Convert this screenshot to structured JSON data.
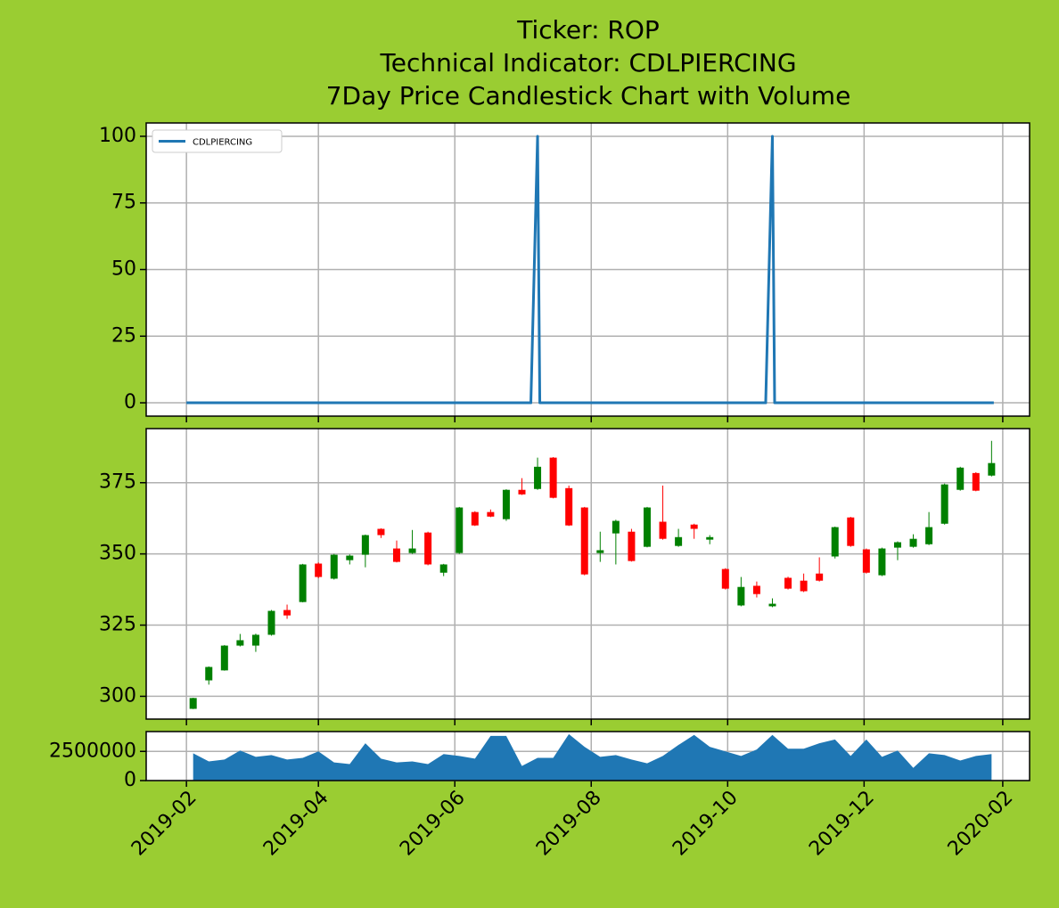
{
  "chart_data": [
    {
      "type": "line",
      "title": [
        "Ticker: ROP",
        "Technical Indicator: CDLPIERCING",
        "7Day Price Candlestick Chart with Volume"
      ],
      "x": [
        "2019-02-01",
        "2019-07-05",
        "2019-07-08",
        "2019-07-09",
        "2019-10-18",
        "2019-10-21",
        "2019-10-22",
        "2020-01-28"
      ],
      "series": [
        {
          "name": "CDLPIERCING",
          "color": "#1f77b4",
          "values": [
            0,
            0,
            100,
            0,
            0,
            100,
            0,
            0
          ]
        }
      ],
      "legend": "upper left",
      "ylim": [
        -5,
        105
      ],
      "yticks": [
        0,
        25,
        50,
        75,
        100
      ],
      "grid": true
    },
    {
      "type": "candlestick",
      "x": [
        "2019-02-04",
        "2019-02-11",
        "2019-02-18",
        "2019-02-25",
        "2019-03-04",
        "2019-03-11",
        "2019-03-18",
        "2019-03-25",
        "2019-04-01",
        "2019-04-08",
        "2019-04-15",
        "2019-04-22",
        "2019-04-29",
        "2019-05-06",
        "2019-05-13",
        "2019-05-20",
        "2019-05-27",
        "2019-06-03",
        "2019-06-10",
        "2019-06-17",
        "2019-06-24",
        "2019-07-01",
        "2019-07-08",
        "2019-07-15",
        "2019-07-22",
        "2019-07-29",
        "2019-08-05",
        "2019-08-12",
        "2019-08-19",
        "2019-08-26",
        "2019-09-02",
        "2019-09-09",
        "2019-09-16",
        "2019-09-23",
        "2019-09-30",
        "2019-10-07",
        "2019-10-14",
        "2019-10-21",
        "2019-10-28",
        "2019-11-04",
        "2019-11-11",
        "2019-11-18",
        "2019-11-25",
        "2019-12-02",
        "2019-12-09",
        "2019-12-16",
        "2019-12-23",
        "2019-12-30",
        "2020-01-06",
        "2020-01-13",
        "2020-01-20",
        "2020-01-27"
      ],
      "open": [
        295.6,
        305.6,
        309.1,
        317.8,
        317.8,
        321.6,
        330.3,
        333.1,
        346.6,
        341.3,
        347.8,
        349.7,
        358.8,
        351.9,
        350.3,
        357.5,
        343.4,
        350.3,
        364.7,
        364.7,
        362.2,
        372.5,
        372.8,
        383.8,
        373.1,
        366.3,
        350.3,
        357.2,
        357.8,
        352.5,
        361.3,
        352.8,
        360.3,
        355.0,
        344.7,
        331.9,
        338.8,
        331.6,
        341.6,
        340.6,
        343.1,
        349.1,
        362.8,
        351.6,
        342.5,
        352.2,
        352.5,
        353.4,
        360.6,
        372.5,
        378.4,
        377.5
      ],
      "high": [
        299.5,
        310.5,
        318.0,
        321.9,
        322.0,
        330.3,
        332.2,
        346.5,
        347.0,
        350.0,
        349.8,
        356.8,
        359.0,
        354.7,
        358.4,
        357.8,
        346.5,
        366.5,
        365.0,
        365.6,
        372.7,
        376.6,
        383.8,
        384.0,
        374.0,
        366.5,
        357.8,
        362.0,
        358.8,
        366.5,
        374.0,
        358.8,
        360.6,
        356.6,
        345.0,
        341.9,
        340.3,
        334.4,
        342.0,
        343.1,
        348.8,
        359.6,
        363.0,
        351.9,
        352.2,
        354.4,
        356.9,
        364.7,
        374.7,
        380.6,
        378.7,
        389.7
      ],
      "low": [
        295.5,
        304.1,
        309.0,
        317.5,
        315.6,
        321.3,
        327.2,
        333.0,
        341.5,
        341.0,
        346.3,
        345.3,
        355.6,
        347.0,
        350.0,
        346.0,
        342.2,
        350.0,
        359.8,
        362.9,
        361.6,
        370.7,
        372.5,
        369.5,
        359.8,
        342.5,
        347.2,
        346.3,
        347.3,
        352.3,
        355.0,
        352.5,
        355.3,
        353.4,
        337.5,
        331.6,
        334.7,
        331.3,
        337.5,
        336.6,
        340.3,
        348.4,
        352.5,
        343.1,
        342.2,
        347.8,
        352.2,
        353.1,
        360.3,
        372.2,
        372.0,
        377.2
      ],
      "close": [
        299.4,
        310.3,
        317.8,
        319.7,
        321.6,
        330.0,
        328.4,
        346.3,
        341.9,
        349.7,
        349.4,
        356.6,
        356.6,
        347.2,
        351.9,
        346.3,
        346.3,
        366.3,
        360.0,
        363.1,
        372.5,
        370.9,
        380.6,
        369.7,
        360.0,
        342.8,
        351.3,
        361.6,
        347.5,
        366.3,
        355.3,
        355.9,
        358.8,
        355.9,
        337.8,
        338.4,
        335.9,
        332.5,
        337.8,
        336.9,
        340.6,
        359.4,
        352.8,
        343.4,
        351.9,
        354.1,
        355.3,
        359.4,
        374.4,
        380.3,
        372.2,
        381.9
      ],
      "up_color": "green",
      "down_color": "red",
      "ylim": [
        292,
        394
      ],
      "yticks": [
        300,
        325,
        350,
        375
      ],
      "grid": true
    },
    {
      "type": "area",
      "x": [
        "2019-02-04",
        "2019-02-11",
        "2019-02-18",
        "2019-02-25",
        "2019-03-04",
        "2019-03-11",
        "2019-03-18",
        "2019-03-25",
        "2019-04-01",
        "2019-04-08",
        "2019-04-15",
        "2019-04-22",
        "2019-04-29",
        "2019-05-06",
        "2019-05-13",
        "2019-05-20",
        "2019-05-27",
        "2019-06-03",
        "2019-06-10",
        "2019-06-17",
        "2019-06-24",
        "2019-07-01",
        "2019-07-08",
        "2019-07-15",
        "2019-07-22",
        "2019-07-29",
        "2019-08-05",
        "2019-08-12",
        "2019-08-19",
        "2019-08-26",
        "2019-09-02",
        "2019-09-09",
        "2019-09-16",
        "2019-09-23",
        "2019-09-30",
        "2019-10-07",
        "2019-10-14",
        "2019-10-21",
        "2019-10-28",
        "2019-11-04",
        "2019-11-11",
        "2019-11-18",
        "2019-11-25",
        "2019-12-02",
        "2019-12-09",
        "2019-12-16",
        "2019-12-23",
        "2019-12-30",
        "2020-01-06",
        "2020-01-13",
        "2020-01-20",
        "2020-01-27"
      ],
      "values": [
        2340000,
        1640000,
        1800000,
        2580000,
        2030000,
        2190000,
        1800000,
        1950000,
        2500000,
        1560000,
        1410000,
        3200000,
        1880000,
        1560000,
        1640000,
        1410000,
        2270000,
        2110000,
        1880000,
        3830000,
        3830000,
        1250000,
        1950000,
        1950000,
        3980000,
        2890000,
        2030000,
        2190000,
        1800000,
        1480000,
        2110000,
        3050000,
        3910000,
        2890000,
        2500000,
        2110000,
        2660000,
        3910000,
        2730000,
        2730000,
        3200000,
        3520000,
        2110000,
        3520000,
        2030000,
        2580000,
        1090000,
        2340000,
        2190000,
        1720000,
        2110000,
        2270000
      ],
      "color": "#1f77b4",
      "ylim": [
        0,
        4200000
      ],
      "yticks": [
        0,
        2500000
      ],
      "grid": true,
      "xlim": [
        "2019-01-14",
        "2020-02-13"
      ],
      "xticks": [
        {
          "value": "2019-02-01",
          "label": "2019-02"
        },
        {
          "value": "2019-04-01",
          "label": "2019-04"
        },
        {
          "value": "2019-06-01",
          "label": "2019-06"
        },
        {
          "value": "2019-08-01",
          "label": "2019-08"
        },
        {
          "value": "2019-10-01",
          "label": "2019-10"
        },
        {
          "value": "2019-12-01",
          "label": "2019-12"
        },
        {
          "value": "2020-02-01",
          "label": "2020-02"
        }
      ]
    }
  ]
}
